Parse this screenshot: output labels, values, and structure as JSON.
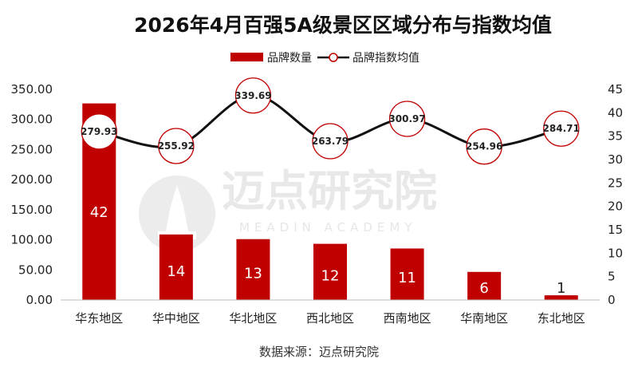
{
  "chart_data": {
    "type": "bar+line",
    "title": "2026年4月百强5A级景区区域分布与指数均值",
    "categories": [
      "华东地区",
      "华中地区",
      "华北地区",
      "西北地区",
      "西南地区",
      "华南地区",
      "东北地区"
    ],
    "series": [
      {
        "name": "品牌数量",
        "type": "bar",
        "axis": "right",
        "color": "#c00000",
        "values": [
          42,
          14,
          13,
          12,
          11,
          6,
          1
        ]
      },
      {
        "name": "品牌指数均值",
        "type": "line",
        "axis": "left",
        "color": "#111111",
        "marker_edge_color": "#c00000",
        "values": [
          279.93,
          255.92,
          339.69,
          263.79,
          300.97,
          254.96,
          284.71
        ]
      }
    ],
    "left_axis": {
      "ylim": [
        0,
        350
      ],
      "ticks": [
        "0.00",
        "50.00",
        "100.00",
        "150.00",
        "200.00",
        "250.00",
        "300.00",
        "350.00"
      ]
    },
    "right_axis": {
      "ylim": [
        0,
        45
      ],
      "ticks": [
        "0",
        "5",
        "10",
        "15",
        "20",
        "25",
        "30",
        "35",
        "40",
        "45"
      ]
    },
    "legend_position": "top-center",
    "grid": false
  },
  "watermark": {
    "cn": "迈点研究院",
    "en": "MEADIN ACADEMY"
  },
  "source_text": "数据来源：迈点研究院"
}
